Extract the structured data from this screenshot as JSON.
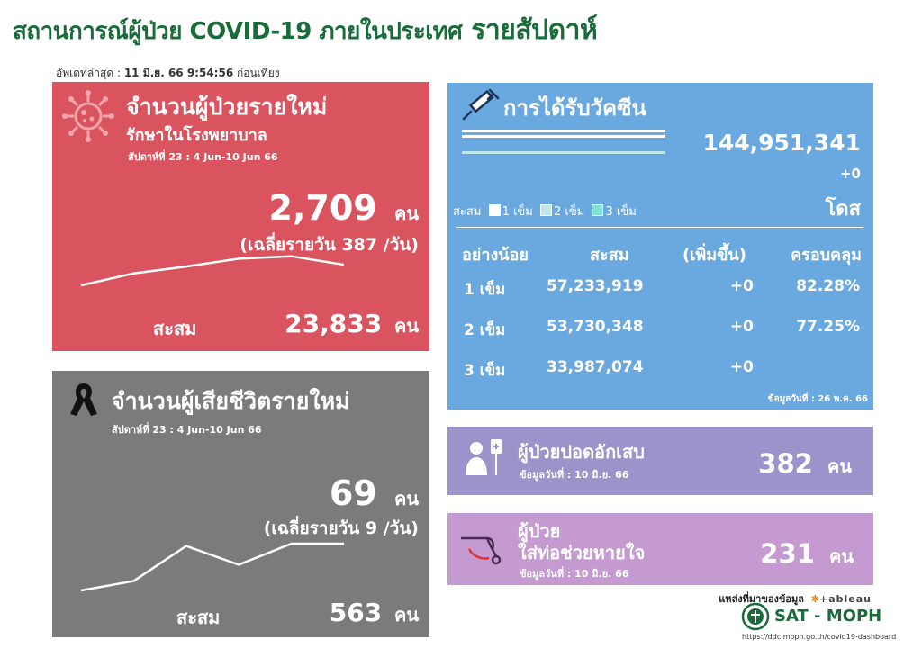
{
  "header": {
    "title": "สถานการณ์ผู้ป่วย COVID-19 ภายในประเทศ",
    "title_emphasis": "รายสัปดาห์",
    "updated_label": "อัพเดทล่าสุด :",
    "updated_value": "11 มิ.ย. 66 9:54:56",
    "updated_suffix": "ก่อนเที่ยง"
  },
  "new_cases": {
    "title": "จำนวนผู้ป่วยรายใหม่",
    "subtitle": "รักษาในโรงพยาบาล",
    "week": "สัปดาห์ที่ 23 : 4 Jun-10 Jun 66",
    "value": "2,709",
    "unit": "คน",
    "daily_avg": "(เฉลี่ยรายวัน 387 /วัน)",
    "cumulative_label": "สะสม",
    "cumulative_value": "23,833",
    "cumulative_unit": "คน",
    "trend": [
      0.0,
      0.35,
      0.55,
      0.78,
      0.85,
      0.6
    ],
    "icon": "virus-icon",
    "color": "#d9545f"
  },
  "deaths": {
    "title": "จำนวนผู้เสียชีวิตรายใหม่",
    "week": "สัปดาห์ที่ 23 : 4 Jun-10 Jun 66",
    "value": "69",
    "unit": "คน",
    "daily_avg": "(เฉลี่ยรายวัน 9 /วัน)",
    "cumulative_label": "สะสม",
    "cumulative_value": "563",
    "cumulative_unit": "คน",
    "trend": [
      0.0,
      0.2,
      0.95,
      0.55,
      1.0,
      1.0
    ],
    "icon": "ribbon-icon",
    "color": "#7b7b7b"
  },
  "vaccine": {
    "title": "การได้รับวัคซีน",
    "total": "144,951,341",
    "increase": "+0",
    "unit": "โดส",
    "legend_label": "สะสม",
    "legend": [
      "1 เข็ม",
      "2 เข็ม",
      "3 เข็ม"
    ],
    "table_headers": [
      "อย่างน้อย",
      "สะสม",
      "(เพิ่มขึ้น)",
      "ครอบคลุม"
    ],
    "rows": [
      {
        "dose": "1 เข็ม",
        "cumulative": "57,233,919",
        "increase": "+0",
        "coverage": "82.28%"
      },
      {
        "dose": "2 เข็ม",
        "cumulative": "53,730,348",
        "increase": "+0",
        "coverage": "77.25%"
      },
      {
        "dose": "3 เข็ม",
        "cumulative": "33,987,074",
        "increase": "+0",
        "coverage": ""
      }
    ],
    "data_date": "ข้อมูลวันที่ : 26 พ.ค. 66",
    "icon": "syringe-icon",
    "color": "#6aa8e0"
  },
  "pneumonia": {
    "title": "ผู้ป่วยปอดอักเสบ",
    "data_date": "ข้อมูลวันที่ : 10 มิ.ย. 66",
    "value": "382",
    "unit": "คน",
    "icon": "patient-iv-icon",
    "color": "#9b93c9"
  },
  "ventilator": {
    "title_line1": "ผู้ป่วย",
    "title_line2": "ใส่ท่อช่วยหายใจ",
    "data_date": "ข้อมูลวันที่ : 10 มิ.ย. 66",
    "value": "231",
    "unit": "คน",
    "icon": "breathing-tube-icon",
    "color": "#c59ad0"
  },
  "footer": {
    "source_label": "แหล่งที่มาของข้อมูล",
    "tableau": "+ableau",
    "brand": "SAT - MOPH",
    "url": "https://ddc.moph.go.th/covid19-dashboard"
  }
}
